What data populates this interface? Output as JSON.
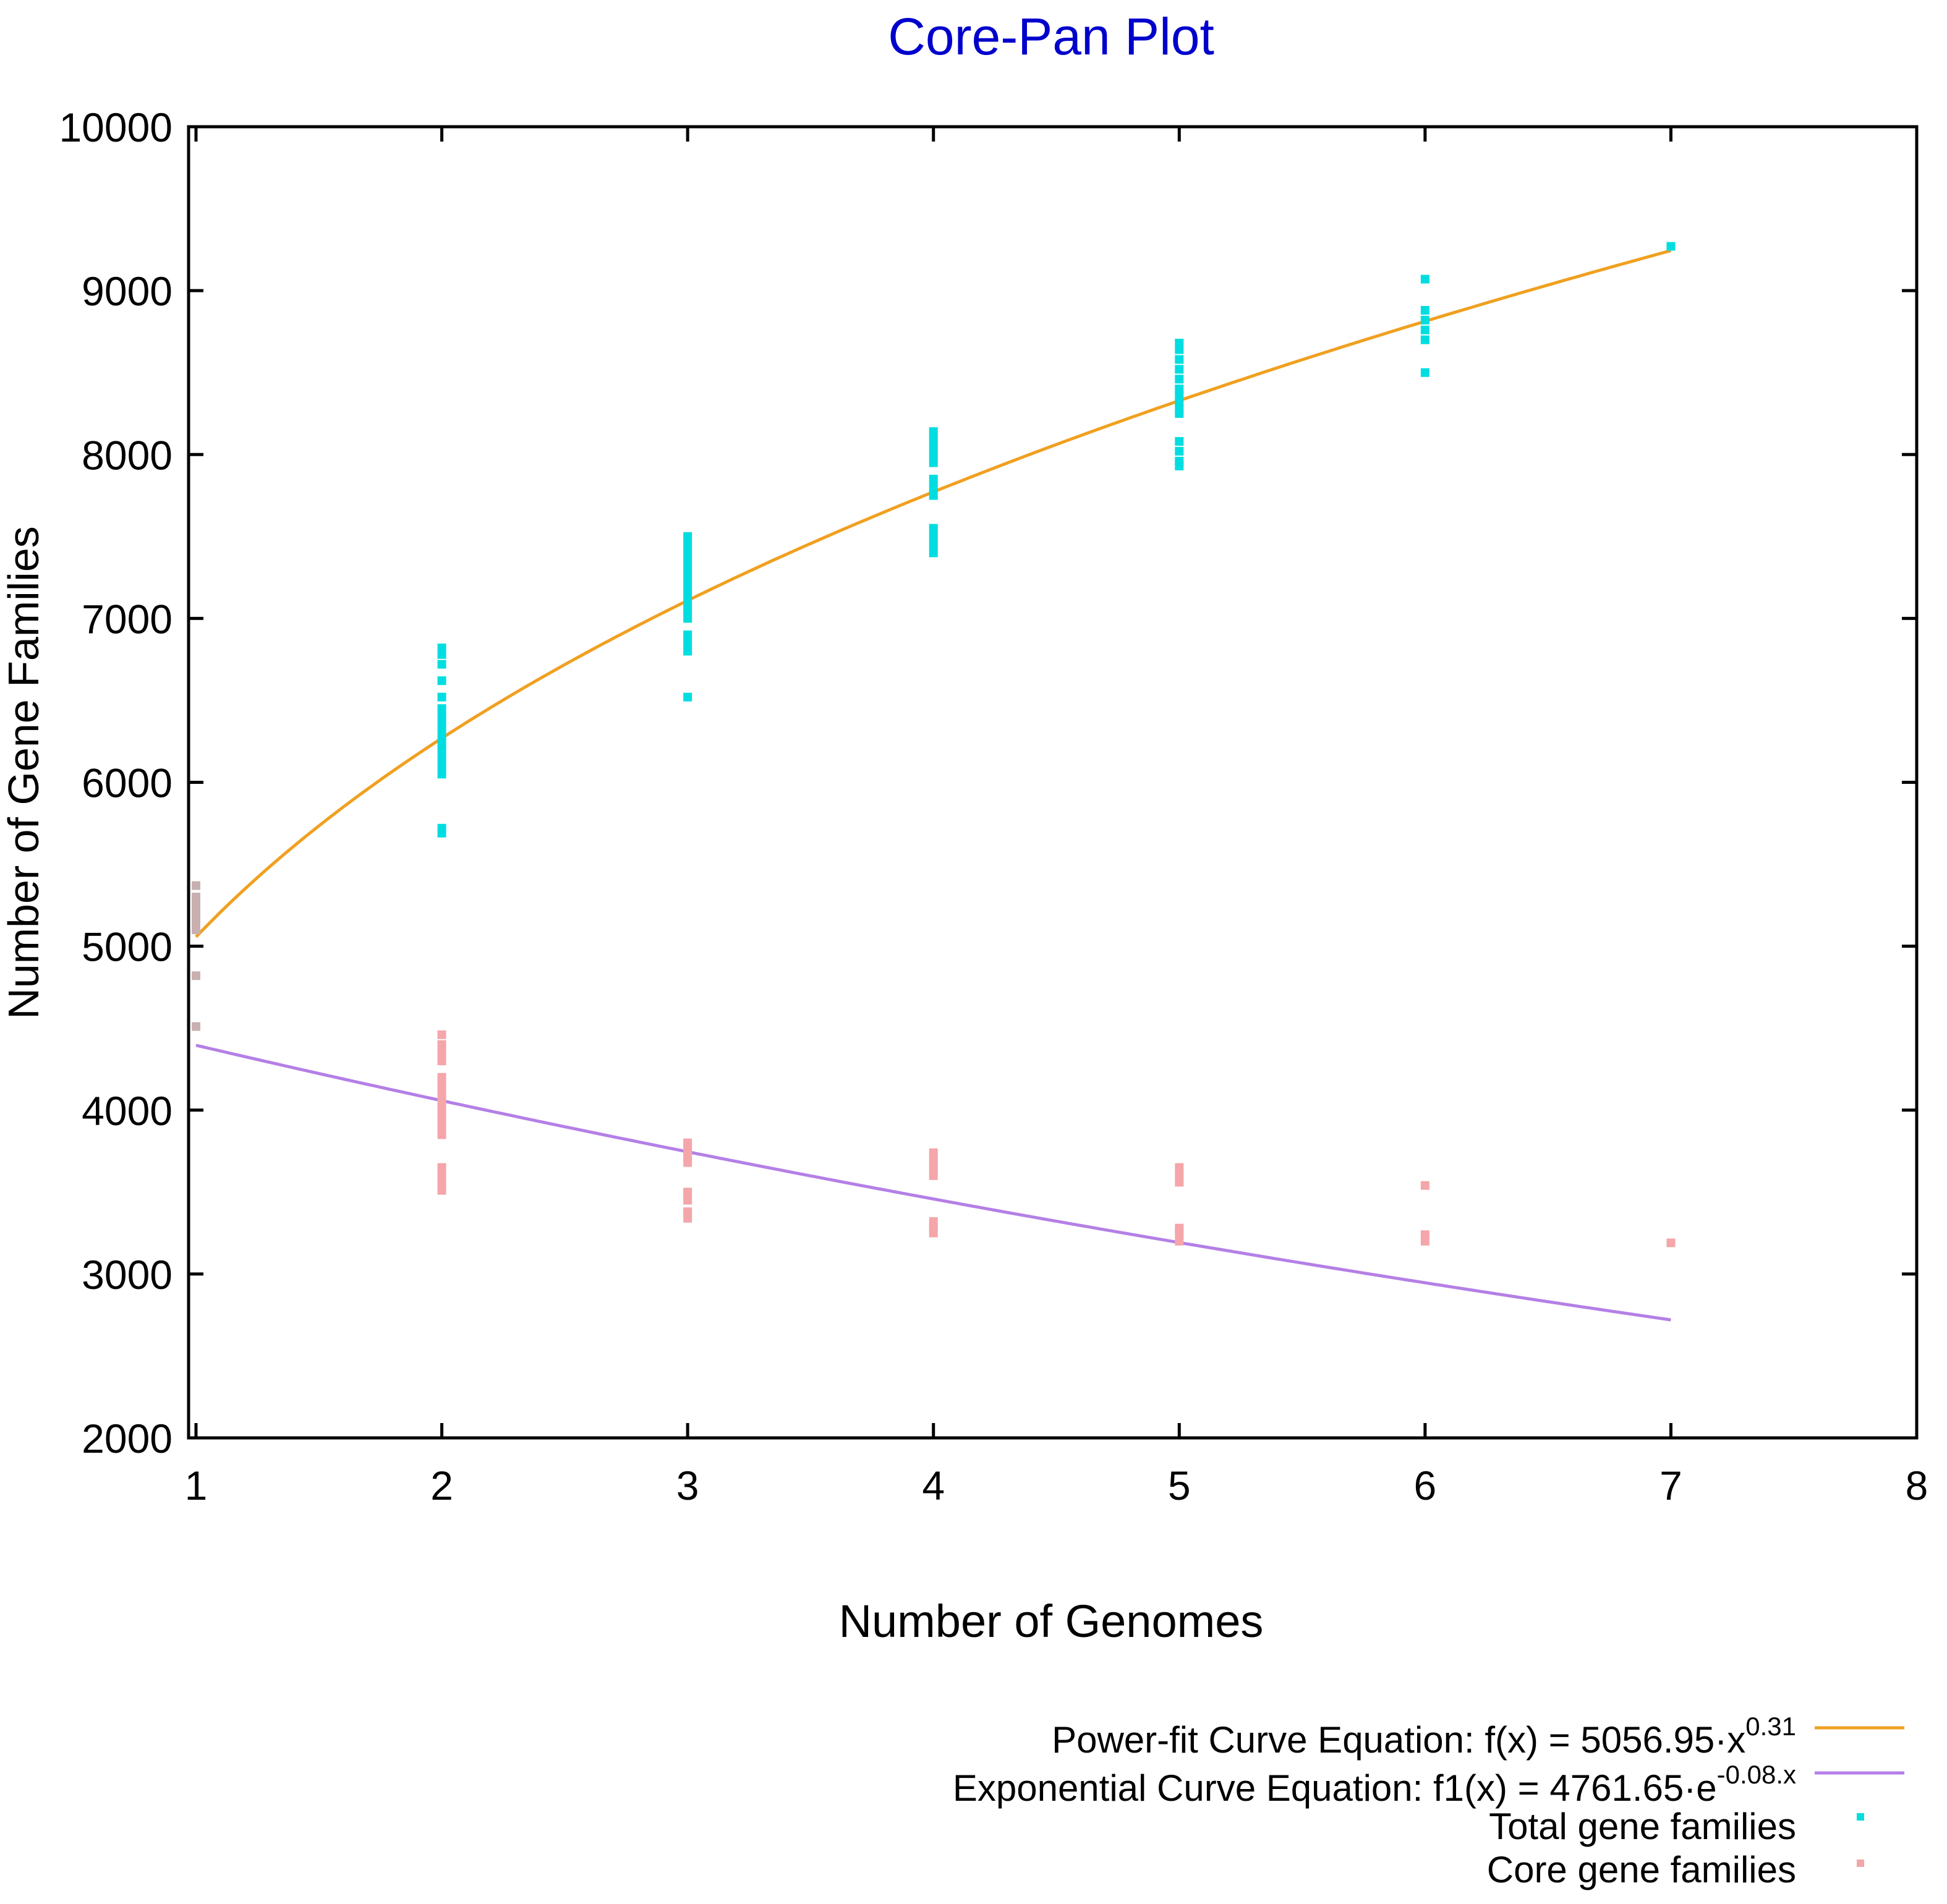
{
  "chart_data": {
    "type": "scatter",
    "title": "Core-Pan Plot",
    "xlabel": "Number of Genomes",
    "ylabel": "Number of Gene Families",
    "xlim": [
      1,
      8
    ],
    "ylim": [
      2000,
      10000
    ],
    "x_ticks": [
      "1",
      "2",
      "3",
      "4",
      "5",
      "6",
      "7",
      "8"
    ],
    "y_ticks": [
      "2000",
      "3000",
      "4000",
      "5000",
      "6000",
      "7000",
      "8000",
      "9000",
      "10000"
    ],
    "grid": false,
    "legend_position": "bottom-right",
    "colors": {
      "title": "#0000cc",
      "power_fit": "#f0a020",
      "exponential": "#b47fe6",
      "total": "#00dde0",
      "core": "#f4a6aa",
      "core_first": "#c8b0b0"
    },
    "legend": {
      "power": {
        "text": "Power-fit Curve Equation: f(x) = 5056.95·x",
        "sup": "0.31"
      },
      "exponential": {
        "text": "Exponential Curve Equation:   f1(x) = 4761.65·e",
        "sup": "-0.08.x"
      },
      "total": {
        "text": "Total gene families"
      },
      "core": {
        "text": "Core gene families"
      }
    },
    "series": [
      {
        "name": "Total gene families",
        "kind": "points",
        "points": [
          [
            1,
            5370
          ],
          [
            1,
            5300
          ],
          [
            1,
            5250
          ],
          [
            1,
            5200
          ],
          [
            1,
            5150
          ],
          [
            1,
            5100
          ],
          [
            2,
            6820
          ],
          [
            2,
            6780
          ],
          [
            2,
            6720
          ],
          [
            2,
            6620
          ],
          [
            2,
            6520
          ],
          [
            2,
            6450
          ],
          [
            2,
            6400
          ],
          [
            2,
            6350
          ],
          [
            2,
            6300
          ],
          [
            2,
            6250
          ],
          [
            2,
            6200
          ],
          [
            2,
            6150
          ],
          [
            2,
            6100
          ],
          [
            2,
            6050
          ],
          [
            2,
            5720
          ],
          [
            2,
            5690
          ],
          [
            3,
            7500
          ],
          [
            3,
            7450
          ],
          [
            3,
            7400
          ],
          [
            3,
            7350
          ],
          [
            3,
            7300
          ],
          [
            3,
            7250
          ],
          [
            3,
            7200
          ],
          [
            3,
            7150
          ],
          [
            3,
            7100
          ],
          [
            3,
            7050
          ],
          [
            3,
            7000
          ],
          [
            3,
            6900
          ],
          [
            3,
            6850
          ],
          [
            3,
            6800
          ],
          [
            3,
            6520
          ],
          [
            4,
            8140
          ],
          [
            4,
            8100
          ],
          [
            4,
            8050
          ],
          [
            4,
            8000
          ],
          [
            4,
            7950
          ],
          [
            4,
            7850
          ],
          [
            4,
            7800
          ],
          [
            4,
            7750
          ],
          [
            4,
            7550
          ],
          [
            4,
            7500
          ],
          [
            4,
            7450
          ],
          [
            4,
            7400
          ],
          [
            5,
            8680
          ],
          [
            5,
            8640
          ],
          [
            5,
            8580
          ],
          [
            5,
            8520
          ],
          [
            5,
            8460
          ],
          [
            5,
            8400
          ],
          [
            5,
            8360
          ],
          [
            5,
            8320
          ],
          [
            5,
            8280
          ],
          [
            5,
            8250
          ],
          [
            5,
            8080
          ],
          [
            5,
            8020
          ],
          [
            5,
            7960
          ],
          [
            5,
            7930
          ],
          [
            6,
            9070
          ],
          [
            6,
            8880
          ],
          [
            6,
            8820
          ],
          [
            6,
            8760
          ],
          [
            6,
            8700
          ],
          [
            6,
            8500
          ],
          [
            7,
            9270
          ]
        ]
      },
      {
        "name": "Core gene families",
        "kind": "points",
        "points": [
          [
            1,
            5370
          ],
          [
            1,
            5300
          ],
          [
            1,
            5200
          ],
          [
            1,
            5100
          ],
          [
            1,
            4820
          ],
          [
            1,
            4510
          ],
          [
            2,
            4460
          ],
          [
            2,
            4400
          ],
          [
            2,
            4350
          ],
          [
            2,
            4300
          ],
          [
            2,
            4200
          ],
          [
            2,
            4150
          ],
          [
            2,
            4100
          ],
          [
            2,
            4050
          ],
          [
            2,
            4000
          ],
          [
            2,
            3950
          ],
          [
            2,
            3900
          ],
          [
            2,
            3850
          ],
          [
            2,
            3650
          ],
          [
            2,
            3600
          ],
          [
            2,
            3550
          ],
          [
            2,
            3510
          ],
          [
            3,
            3800
          ],
          [
            3,
            3760
          ],
          [
            3,
            3720
          ],
          [
            3,
            3680
          ],
          [
            3,
            3500
          ],
          [
            3,
            3450
          ],
          [
            3,
            3380
          ],
          [
            3,
            3340
          ],
          [
            4,
            3740
          ],
          [
            4,
            3700
          ],
          [
            4,
            3650
          ],
          [
            4,
            3600
          ],
          [
            4,
            3320
          ],
          [
            4,
            3280
          ],
          [
            4,
            3250
          ],
          [
            5,
            3650
          ],
          [
            5,
            3600
          ],
          [
            5,
            3560
          ],
          [
            5,
            3280
          ],
          [
            5,
            3250
          ],
          [
            5,
            3200
          ],
          [
            6,
            3540
          ],
          [
            6,
            3240
          ],
          [
            6,
            3200
          ],
          [
            7,
            3190
          ]
        ]
      },
      {
        "name": "Power-fit Curve Equation: f(x) = 5056.95·x^0.31",
        "kind": "curve",
        "a": 5056.95,
        "b": 0.31,
        "domain": [
          1,
          7
        ]
      },
      {
        "name": "Exponential Curve Equation: f1(x) = 4761.65·e^-0.08.x",
        "kind": "curve",
        "a": 4761.65,
        "b": -0.08,
        "domain": [
          1,
          7
        ]
      }
    ]
  }
}
